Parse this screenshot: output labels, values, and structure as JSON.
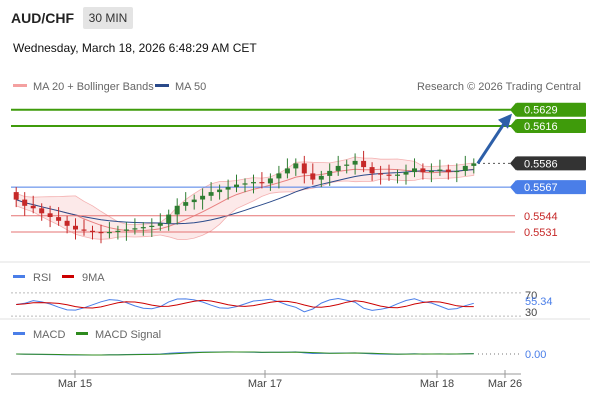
{
  "header": {
    "pair": "AUD/CHF",
    "timeframe": "30 MIN",
    "datetime": "Wednesday, March 18, 2026 6:48:29 AM CET"
  },
  "colors": {
    "bullish": "#2e7d32",
    "bearish": "#c62828",
    "target": "#3f9b0b",
    "support": "#e57373",
    "pivot": "#4a7ee8",
    "ma50": "#2a4a8a",
    "bollinger": "#f4b0b0",
    "current": "#333333",
    "arrow": "#2d5fa8",
    "rsi": "#4a7ee8",
    "rsi_ma": "#cc0000",
    "macd": "#4a7ee8",
    "macd_signal": "#2e8b1e"
  },
  "chart_data": [
    {
      "type": "candlestick",
      "legend": [
        {
          "name": "MA 20 + Bollinger Bands",
          "color": "#f4a0a0"
        },
        {
          "name": "MA 50",
          "color": "#2a4a8a"
        }
      ],
      "credit": "Research © 2026 Trading Central",
      "ylim": [
        0.5507,
        0.564
      ],
      "x_ticks": [
        "Mar 15",
        "Mar 17",
        "Mar 18",
        "Mar 26"
      ],
      "levels": [
        {
          "value": 0.5629,
          "label": "0.5629",
          "kind": "target"
        },
        {
          "value": 0.5616,
          "label": "0.5616",
          "kind": "target"
        },
        {
          "value": 0.5586,
          "label": "0.5586",
          "kind": "current"
        },
        {
          "value": 0.5567,
          "label": "0.5567",
          "kind": "pivot"
        },
        {
          "value": 0.5544,
          "label": "0.5544",
          "kind": "support"
        },
        {
          "value": 0.5531,
          "label": "0.5531",
          "kind": "support"
        }
      ],
      "candles": [
        0.5557,
        0.5552,
        0.555,
        0.5546,
        0.5543,
        0.554,
        0.5536,
        0.5533,
        0.5532,
        0.5531,
        0.553,
        0.5531,
        0.5532,
        0.5533,
        0.5534,
        0.5535,
        0.5536,
        0.5538,
        0.5545,
        0.5552,
        0.5555,
        0.5557,
        0.556,
        0.5563,
        0.5565,
        0.5567,
        0.5569,
        0.557,
        0.5571,
        0.557,
        0.5574,
        0.5578,
        0.5582,
        0.5586,
        0.5578,
        0.5573,
        0.5576,
        0.558,
        0.5584,
        0.5585,
        0.5588,
        0.5583,
        0.5578,
        0.5577,
        0.5576,
        0.5577,
        0.5579,
        0.5582,
        0.5579,
        0.558,
        0.5581,
        0.5579,
        0.558,
        0.5584,
        0.5586
      ]
    },
    {
      "type": "line",
      "legend": [
        {
          "name": "RSI",
          "color": "#4a7ee8"
        },
        {
          "name": "9MA",
          "color": "#cc0000"
        }
      ],
      "ylim": [
        25,
        75
      ],
      "y_ticks": [
        "70",
        "30"
      ],
      "last_value": "55.34"
    },
    {
      "type": "line",
      "legend": [
        {
          "name": "MACD",
          "color": "#4a7ee8"
        },
        {
          "name": "MACD Signal",
          "color": "#2e8b1e"
        }
      ],
      "zero_label": "0.00"
    }
  ]
}
